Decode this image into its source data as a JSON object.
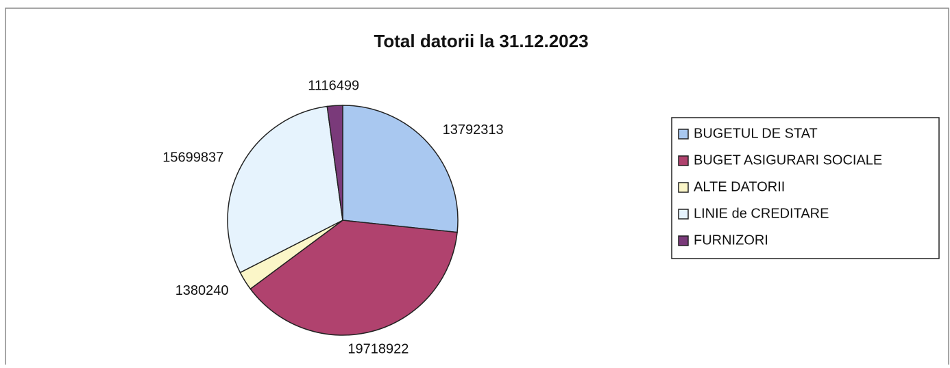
{
  "chart_data": {
    "type": "pie",
    "title": "Total datorii la 31.12.2023",
    "categories": [
      "BUGETUL DE STAT",
      "BUGET ASIGURARI SOCIALE",
      "ALTE DATORII",
      "LINIE de CREDITARE",
      "FURNIZORI"
    ],
    "values": [
      13792313,
      19718922,
      1380240,
      15699837,
      1116499
    ],
    "colors": [
      "#a9c8f0",
      "#b0426e",
      "#fbf6c8",
      "#e6f3fd",
      "#7a3a7a"
    ],
    "legend": "right"
  }
}
